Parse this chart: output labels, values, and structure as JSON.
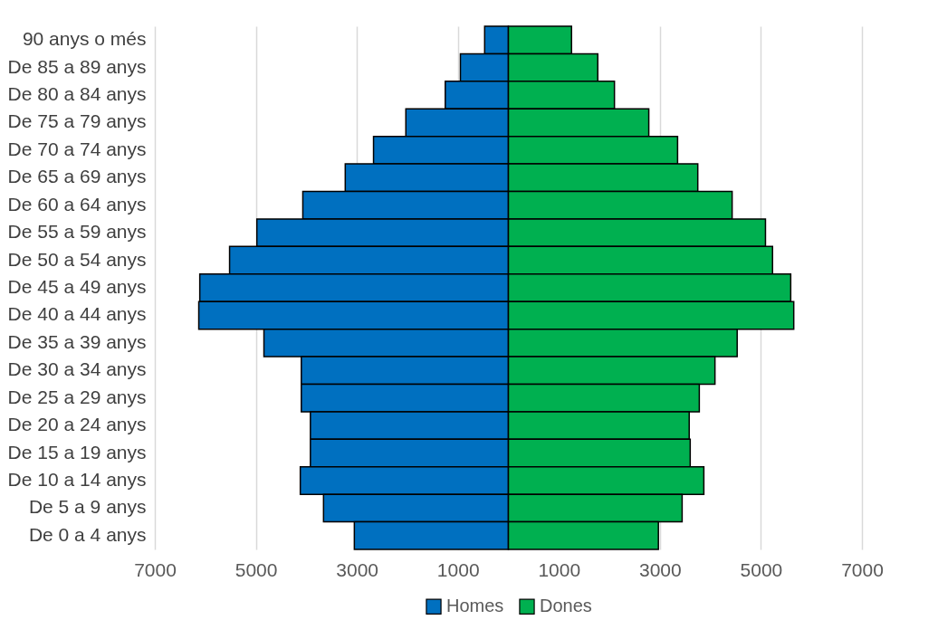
{
  "chart_data": {
    "type": "bar",
    "orientation": "horizontal",
    "categories": [
      "90 anys o més",
      "De 85 a 89 anys",
      "De 80 a 84 anys",
      "De 75 a 79 anys",
      "De 70 a 74 anys",
      "De 65 a 69 anys",
      "De 60 a 64 anys",
      "De 55 a 59 anys",
      "De 50 a 54 anys",
      "De 45 a 49 anys",
      "De 40 a 44 anys",
      "De 35 a 39 anys",
      "De 30 a 34 anys",
      "De 25 a 29 anys",
      "De 20 a 24 anys",
      "De 15 a 19 anys",
      "De 10 a 14 anys",
      "De 5 a 9 anys",
      "De 0 a 4 anys"
    ],
    "series": [
      {
        "name": "Homes",
        "color": "#0070c0",
        "values": [
          -470,
          -950,
          -1250,
          -2030,
          -2670,
          -3230,
          -4070,
          -4980,
          -5520,
          -6110,
          -6130,
          -4840,
          -4100,
          -4100,
          -3920,
          -3920,
          -4120,
          -3660,
          -3050
        ]
      },
      {
        "name": "Dones",
        "color": "#00b050",
        "values": [
          1250,
          1770,
          2100,
          2780,
          3350,
          3750,
          4430,
          5090,
          5230,
          5590,
          5650,
          4530,
          4090,
          3780,
          3580,
          3600,
          3870,
          3440,
          2970
        ]
      }
    ],
    "xlim": [
      -7000,
      7000
    ],
    "xticks": [
      {
        "value": -7000,
        "label": "7000"
      },
      {
        "value": -5000,
        "label": "5000"
      },
      {
        "value": -3000,
        "label": "3000"
      },
      {
        "value": -1000,
        "label": "1000"
      },
      1000,
      3000,
      5000,
      7000
    ],
    "grid": "x",
    "legend": "bottom",
    "stacked": true
  }
}
